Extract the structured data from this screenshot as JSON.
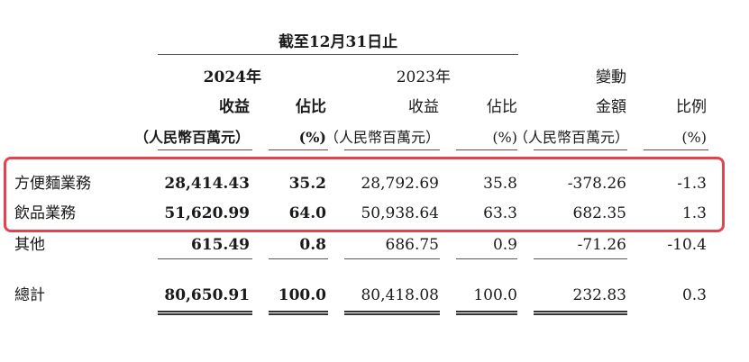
{
  "table": {
    "period_header": "截至12月31日止",
    "columns": {
      "y2024": "2024年",
      "y2023": "2023年",
      "change": "變動",
      "revenue": "收益",
      "share": "佔比",
      "amount": "金額",
      "ratio": "比例",
      "unit_rmb": "（人民幣百萬元）",
      "unit_pct": "(%)"
    },
    "rows": [
      {
        "label": "方便麵業務",
        "rev2024": "28,414.43",
        "share2024": "35.2",
        "rev2023": "28,792.69",
        "share2023": "35.8",
        "amount": "-378.26",
        "ratio": "-1.3"
      },
      {
        "label": "飲品業務",
        "rev2024": "51,620.99",
        "share2024": "64.0",
        "rev2023": "50,938.64",
        "share2023": "63.3",
        "amount": "682.35",
        "ratio": "1.3"
      },
      {
        "label": "其他",
        "rev2024": "615.49",
        "share2024": "0.8",
        "rev2023": "686.75",
        "share2023": "0.9",
        "amount": "-71.26",
        "ratio": "-10.4"
      }
    ],
    "total": {
      "label": "總計",
      "rev2024": "80,650.91",
      "share2024": "100.0",
      "rev2023": "80,418.08",
      "share2023": "100.0",
      "amount": "232.83",
      "ratio": "0.3"
    },
    "highlight_color": "#e0454f"
  }
}
